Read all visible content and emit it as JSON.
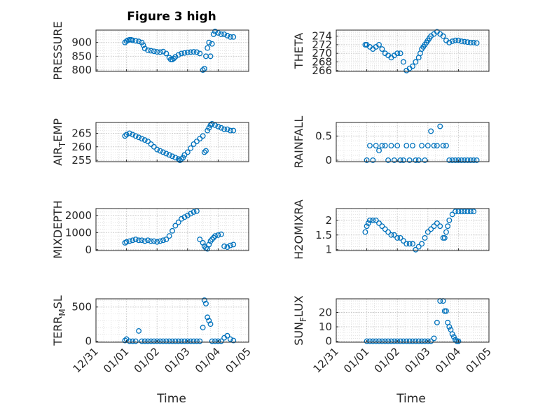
{
  "figure": {
    "title": "Figure 3 high",
    "x_tick_labels": [
      "12/31",
      "01/01",
      "01/02",
      "01/03",
      "01/04",
      "01/05"
    ],
    "x_label": "Time",
    "marker_color": "#0072BD"
  },
  "chart_data": [
    {
      "type": "scatter",
      "ylabel": "PRESSURE",
      "xlim": [
        0,
        5
      ],
      "ylim": [
        795,
        945
      ],
      "yticks": [
        800,
        850,
        900
      ],
      "show_x_ticks": false,
      "x": [
        0.95,
        1.0,
        1.05,
        1.1,
        1.15,
        1.2,
        1.3,
        1.4,
        1.5,
        1.55,
        1.6,
        1.7,
        1.8,
        1.9,
        2.0,
        2.1,
        2.2,
        2.3,
        2.4,
        2.45,
        2.5,
        2.55,
        2.6,
        2.7,
        2.8,
        2.9,
        3.0,
        3.1,
        3.2,
        3.3,
        3.4,
        3.5,
        3.55,
        3.6,
        3.65,
        3.7,
        3.75,
        3.8,
        3.85,
        3.9,
        4.0,
        4.1,
        4.2,
        4.3,
        4.4,
        4.5
      ],
      "y": [
        900,
        905,
        908,
        910,
        910,
        908,
        906,
        904,
        900,
        890,
        878,
        872,
        870,
        868,
        866,
        865,
        867,
        860,
        845,
        838,
        838,
        842,
        848,
        855,
        860,
        862,
        864,
        865,
        866,
        865,
        860,
        800,
        805,
        850,
        880,
        900,
        850,
        895,
        930,
        940,
        935,
        930,
        930,
        925,
        920,
        920
      ]
    },
    {
      "type": "scatter",
      "ylabel": "THETA",
      "xlim": [
        0,
        5
      ],
      "ylim": [
        265.8,
        275.4
      ],
      "yticks": [
        266,
        268,
        270,
        272,
        274
      ],
      "show_x_ticks": false,
      "x": [
        0.95,
        1.0,
        1.1,
        1.2,
        1.3,
        1.4,
        1.5,
        1.6,
        1.7,
        1.8,
        1.9,
        2.0,
        2.1,
        2.2,
        2.3,
        2.4,
        2.5,
        2.6,
        2.7,
        2.75,
        2.8,
        2.85,
        2.9,
        2.95,
        3.0,
        3.05,
        3.1,
        3.2,
        3.3,
        3.4,
        3.5,
        3.6,
        3.7,
        3.8,
        3.9,
        4.0,
        4.1,
        4.2,
        4.3,
        4.4,
        4.5,
        4.6
      ],
      "y": [
        272,
        272,
        271.5,
        271,
        271.5,
        272,
        271,
        270,
        269.5,
        269,
        269.5,
        270,
        270,
        268,
        266,
        266.5,
        267,
        268,
        269,
        270,
        271,
        271.5,
        272,
        272.5,
        273,
        273.5,
        274,
        274.5,
        275,
        274.5,
        274,
        273,
        272.5,
        272.8,
        273,
        273,
        272.8,
        272.7,
        272.6,
        272.5,
        272.5,
        272.4
      ]
    },
    {
      "type": "scatter",
      "ylabel": "AIR_TEMP",
      "xlim": [
        0,
        5
      ],
      "ylim": [
        254.5,
        269.0
      ],
      "yticks": [
        255,
        260,
        265
      ],
      "show_x_ticks": false,
      "x": [
        0.95,
        1.0,
        1.1,
        1.2,
        1.3,
        1.4,
        1.5,
        1.6,
        1.7,
        1.8,
        1.9,
        2.0,
        2.1,
        2.2,
        2.3,
        2.4,
        2.5,
        2.6,
        2.7,
        2.75,
        2.8,
        2.85,
        2.9,
        3.0,
        3.1,
        3.2,
        3.3,
        3.4,
        3.5,
        3.55,
        3.6,
        3.65,
        3.7,
        3.75,
        3.8,
        3.9,
        4.0,
        4.1,
        4.2,
        4.3,
        4.4,
        4.5
      ],
      "y": [
        264,
        264.5,
        265,
        264.5,
        264,
        263.5,
        263,
        262.5,
        262,
        261,
        260,
        259,
        258.5,
        258,
        257.5,
        257,
        256.5,
        256,
        255.5,
        255,
        255.5,
        256,
        257,
        258,
        259.5,
        261,
        262,
        263,
        264,
        258,
        258.5,
        266,
        267,
        268,
        268.5,
        268,
        267.5,
        267,
        266.5,
        266.5,
        266,
        266
      ]
    },
    {
      "type": "scatter",
      "ylabel": "RAINFALL",
      "xlim": [
        0,
        5
      ],
      "ylim": [
        -0.03,
        0.78
      ],
      "yticks": [
        0,
        0.5
      ],
      "show_x_ticks": false,
      "x": [
        1.0,
        1.1,
        1.2,
        1.3,
        1.4,
        1.5,
        1.6,
        1.7,
        1.8,
        1.9,
        2.0,
        2.1,
        2.2,
        2.3,
        2.4,
        2.5,
        2.6,
        2.7,
        2.8,
        2.9,
        3.0,
        3.1,
        3.2,
        3.3,
        3.4,
        3.5,
        3.6,
        3.7,
        3.8,
        3.9,
        4.0,
        4.1,
        4.2,
        4.3,
        4.4,
        4.5,
        4.6
      ],
      "y": [
        0,
        0.3,
        0,
        0.3,
        0.2,
        0.3,
        0.3,
        0,
        0.3,
        0,
        0.3,
        0,
        0,
        0.3,
        0,
        0.3,
        0,
        0,
        0.3,
        0,
        0.3,
        0.6,
        0.3,
        0.3,
        0.7,
        0.3,
        0.3,
        0,
        0,
        0,
        0,
        0,
        0,
        0,
        0,
        0,
        0
      ]
    },
    {
      "type": "scatter",
      "ylabel": "MIXDEPTH",
      "xlim": [
        0,
        5
      ],
      "ylim": [
        -50,
        2400
      ],
      "yticks": [
        0,
        1000,
        2000
      ],
      "show_x_ticks": false,
      "x": [
        0.95,
        1.0,
        1.1,
        1.2,
        1.3,
        1.4,
        1.5,
        1.6,
        1.7,
        1.8,
        1.9,
        2.0,
        2.1,
        2.2,
        2.3,
        2.4,
        2.5,
        2.6,
        2.7,
        2.8,
        2.9,
        3.0,
        3.1,
        3.2,
        3.3,
        3.4,
        3.5,
        3.55,
        3.6,
        3.65,
        3.7,
        3.75,
        3.8,
        3.85,
        3.9,
        4.0,
        4.1,
        4.2,
        4.3,
        4.4,
        4.5
      ],
      "y": [
        400,
        450,
        500,
        550,
        600,
        550,
        550,
        500,
        550,
        500,
        500,
        450,
        500,
        550,
        600,
        800,
        1100,
        1400,
        1600,
        1800,
        1900,
        2000,
        2100,
        2200,
        2250,
        600,
        400,
        200,
        100,
        50,
        300,
        500,
        600,
        700,
        800,
        850,
        900,
        200,
        150,
        250,
        300
      ]
    },
    {
      "type": "scatter",
      "ylabel": "H2OMIXRA",
      "xlim": [
        0,
        5
      ],
      "ylim": [
        0.97,
        2.4
      ],
      "yticks": [
        1,
        1.5,
        2
      ],
      "show_x_ticks": false,
      "x": [
        0.95,
        1.0,
        1.05,
        1.1,
        1.2,
        1.3,
        1.4,
        1.5,
        1.6,
        1.7,
        1.8,
        1.9,
        2.0,
        2.1,
        2.2,
        2.3,
        2.4,
        2.5,
        2.6,
        2.7,
        2.8,
        2.9,
        3.0,
        3.1,
        3.2,
        3.3,
        3.4,
        3.5,
        3.55,
        3.6,
        3.65,
        3.7,
        3.8,
        3.9,
        4.0,
        4.1,
        4.2,
        4.3,
        4.4,
        4.5
      ],
      "y": [
        1.6,
        1.8,
        1.9,
        2.0,
        2.0,
        2.0,
        1.9,
        1.8,
        1.7,
        1.6,
        1.5,
        1.5,
        1.4,
        1.4,
        1.3,
        1.2,
        1.2,
        1.2,
        1.0,
        1.1,
        1.2,
        1.4,
        1.6,
        1.7,
        1.8,
        1.9,
        1.8,
        1.4,
        1.4,
        1.6,
        1.8,
        2.0,
        2.2,
        2.3,
        2.3,
        2.3,
        2.3,
        2.3,
        2.3,
        2.3
      ]
    },
    {
      "type": "scatter",
      "ylabel": "TERR_MSL",
      "xlim": [
        0,
        5
      ],
      "ylim": [
        -15,
        620
      ],
      "yticks": [
        0,
        500
      ],
      "show_x_ticks": true,
      "x": [
        0.95,
        1.0,
        1.1,
        1.2,
        1.3,
        1.4,
        1.5,
        1.6,
        1.7,
        1.8,
        1.9,
        2.0,
        2.1,
        2.2,
        2.3,
        2.4,
        2.5,
        2.6,
        2.7,
        2.8,
        2.9,
        3.0,
        3.1,
        3.2,
        3.3,
        3.4,
        3.5,
        3.55,
        3.6,
        3.65,
        3.7,
        3.75,
        3.8,
        3.9,
        4.0,
        4.1,
        4.2,
        4.3,
        4.4,
        4.5
      ],
      "y": [
        10,
        30,
        0,
        0,
        0,
        150,
        0,
        0,
        0,
        0,
        0,
        0,
        0,
        0,
        0,
        0,
        0,
        0,
        0,
        0,
        0,
        0,
        0,
        0,
        0,
        0,
        200,
        600,
        550,
        350,
        300,
        250,
        0,
        0,
        0,
        0,
        50,
        80,
        30,
        10
      ]
    },
    {
      "type": "scatter",
      "ylabel": "SUN_FLUX",
      "xlim": [
        0,
        5
      ],
      "ylim": [
        -0.7,
        29.5
      ],
      "yticks": [
        0,
        10,
        20
      ],
      "show_x_ticks": true,
      "x": [
        1.0,
        1.1,
        1.2,
        1.3,
        1.4,
        1.5,
        1.6,
        1.7,
        1.8,
        1.9,
        2.0,
        2.1,
        2.2,
        2.3,
        2.4,
        2.5,
        2.6,
        2.7,
        2.8,
        2.9,
        3.0,
        3.1,
        3.2,
        3.3,
        3.4,
        3.5,
        3.55,
        3.6,
        3.65,
        3.7,
        3.75,
        3.8,
        3.85,
        3.9,
        3.95,
        4.0
      ],
      "y": [
        0,
        0,
        0,
        0,
        0,
        0,
        0,
        0,
        0,
        0,
        0,
        0,
        0,
        0,
        0,
        0,
        0,
        0,
        0,
        0,
        0,
        0,
        2,
        13,
        28,
        28,
        21,
        21,
        13,
        10,
        8,
        5,
        3,
        1,
        0,
        0
      ]
    }
  ]
}
